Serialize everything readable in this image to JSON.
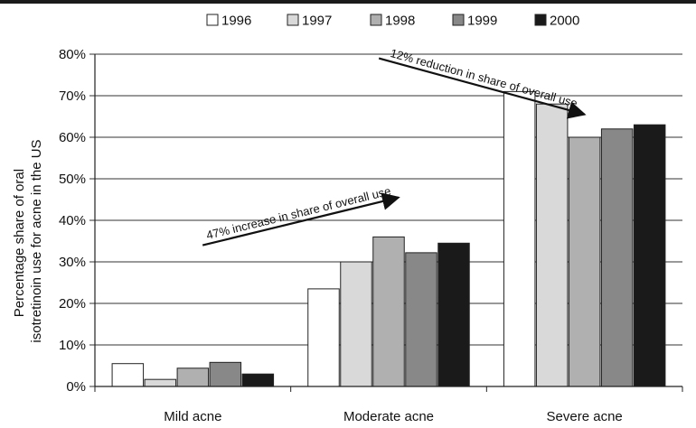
{
  "chart_data": {
    "type": "bar",
    "title": "",
    "xlabel": "",
    "ylabel": "Percentage share of oral isotretinoin use for acne in the US",
    "ylabel_lines": [
      "Percentage share of oral",
      "isotretinoin use for acne in the US"
    ],
    "categories": [
      "Mild acne",
      "Moderate acne",
      "Severe acne"
    ],
    "ylim": [
      0,
      80
    ],
    "yticks": [
      "0%",
      "10%",
      "20%",
      "30%",
      "40%",
      "50%",
      "60%",
      "70%",
      "80%"
    ],
    "grid": true,
    "legend_position": "top",
    "series": [
      {
        "name": "1996",
        "color": "#ffffff",
        "values": [
          5.5,
          23.5,
          71
        ]
      },
      {
        "name": "1997",
        "color": "#d9d9d9",
        "values": [
          1.7,
          30,
          68
        ]
      },
      {
        "name": "1998",
        "color": "#b0b0b0",
        "values": [
          4.4,
          36,
          60
        ]
      },
      {
        "name": "1999",
        "color": "#888888",
        "values": [
          5.8,
          32.2,
          62
        ]
      },
      {
        "name": "2000",
        "color": "#1a1a1a",
        "values": [
          3,
          34.5,
          63
        ]
      }
    ],
    "annotations": [
      {
        "text": "47% increase in share of overall use",
        "from": [
          0.55,
          34.0
        ],
        "to": [
          1.55,
          45.5
        ]
      },
      {
        "text": "12% reduction in share of overall use",
        "from": [
          1.45,
          79.0
        ],
        "to": [
          2.5,
          65.5
        ]
      }
    ]
  }
}
